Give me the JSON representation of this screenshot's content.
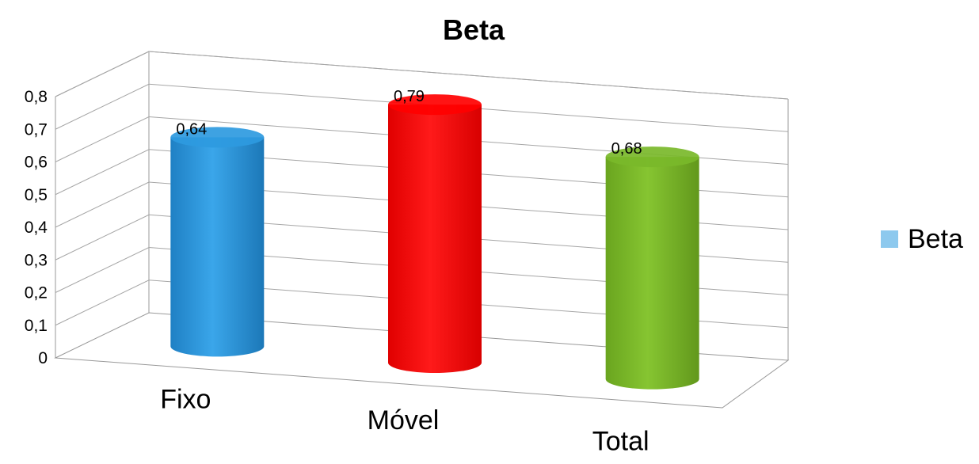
{
  "chart_data": {
    "type": "bar",
    "style": "3d-cylinder",
    "title": "Beta",
    "categories": [
      "Fixo",
      "Móvel",
      "Total"
    ],
    "series": [
      {
        "name": "Beta",
        "values": [
          0.64,
          0.79,
          0.68
        ],
        "labels": [
          "0,64",
          "0,79",
          "0,68"
        ]
      }
    ],
    "bar_colors": [
      "#2e9ae0",
      "#ff0000",
      "#7ab82a"
    ],
    "legend_color": "#8dc9ee",
    "yticks": [
      "0",
      "0,1",
      "0,2",
      "0,3",
      "0,4",
      "0,5",
      "0,6",
      "0,7",
      "0,8"
    ],
    "ylim": [
      0,
      0.8
    ],
    "grid": true,
    "legend_position": "right"
  }
}
